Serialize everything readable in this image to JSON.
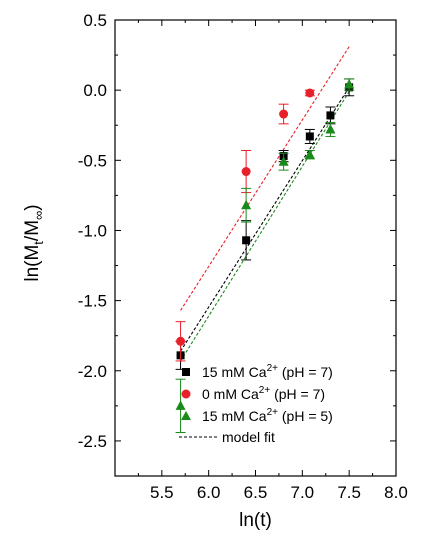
{
  "chart_data": {
    "type": "scatter",
    "title": "",
    "xlabel": "ln(t)",
    "ylabel_parts": {
      "main": "ln(M",
      "sub1": "t",
      "mid": "/M",
      "sub2": "∞",
      "end": ")"
    },
    "xlim": [
      5.0,
      8.0
    ],
    "ylim": [
      -2.75,
      0.5
    ],
    "xticks": [
      "5.5",
      "6.0",
      "6.5",
      "7.0",
      "7.5",
      "8.0"
    ],
    "yticks": [
      "0.5",
      "0.0",
      "-0.5",
      "-1.0",
      "-1.5",
      "-2.0",
      "-2.5"
    ],
    "legend_position": "bottom-right",
    "series": [
      {
        "name": "15 mM Ca2+ (pH = 7)",
        "legend": {
          "prefix": "15 mM Ca",
          "sup": "2+",
          "suffix": " (pH = 7)"
        },
        "marker": "square",
        "color": "#000000",
        "x": [
          5.7,
          6.4,
          6.8,
          7.08,
          7.3,
          7.5
        ],
        "y": [
          -1.89,
          -1.07,
          -0.47,
          -0.33,
          -0.18,
          0.02
        ],
        "err": [
          0.1,
          0.14,
          0.04,
          0.05,
          0.06,
          0.06
        ]
      },
      {
        "name": "0 mM Ca2+ (pH = 7)",
        "legend": {
          "prefix": "0 mM Ca",
          "sup": "2+",
          "suffix": " (pH = 7)"
        },
        "marker": "circle",
        "color": "#e8202a",
        "x": [
          5.7,
          6.4,
          6.8,
          7.08
        ],
        "y": [
          -1.79,
          -0.58,
          -0.17,
          -0.02
        ],
        "err": [
          0.14,
          0.15,
          0.07,
          0.02
        ]
      },
      {
        "name": "15 mM Ca2+ (pH = 5)",
        "legend": {
          "prefix": "15 mM Ca",
          "sup": "2+",
          "suffix": " (pH = 5)"
        },
        "marker": "triangle",
        "color": "#1a8a1a",
        "x": [
          5.7,
          6.4,
          6.8,
          7.08,
          7.3,
          7.5
        ],
        "y": [
          -2.25,
          -0.82,
          -0.51,
          -0.46,
          -0.28,
          0.04
        ],
        "err": [
          0.19,
          0.12,
          0.06,
          0.03,
          0.05,
          0.04
        ]
      }
    ],
    "fit_lines": [
      {
        "color": "#e8202a",
        "x": [
          5.7,
          7.5
        ],
        "y": [
          -1.57,
          0.31
        ]
      },
      {
        "color": "#000000",
        "x": [
          5.7,
          7.5
        ],
        "y": [
          -1.86,
          0.02
        ]
      },
      {
        "color": "#1a8a1a",
        "x": [
          5.7,
          7.5
        ],
        "y": [
          -1.93,
          -0.01
        ]
      }
    ],
    "fit_legend_label": "model fit"
  }
}
